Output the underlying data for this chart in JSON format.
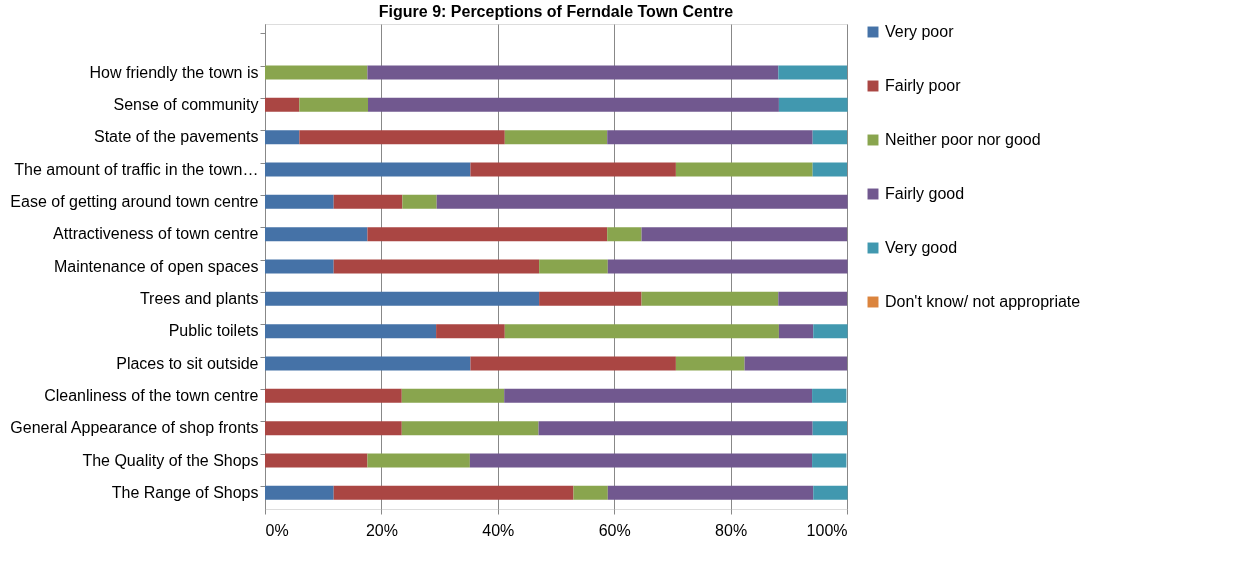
{
  "chart_data": {
    "type": "bar",
    "orientation": "horizontal",
    "stacked": true,
    "title": "Figure 9: Perceptions of Ferndale Town Centre",
    "categories": [
      null,
      "How friendly the town is",
      "Sense of community",
      "State of the pavements",
      "The amount of traffic in the town…",
      "Ease of getting around town centre",
      "Attractiveness of town centre",
      "Maintenance of open spaces",
      "Trees and plants",
      "Public toilets",
      "Places to sit outside",
      "Cleanliness of the town centre",
      "General Appearance of shop fronts",
      "The Quality of the Shops",
      "The Range of Shops"
    ],
    "series": [
      {
        "name": "Very poor",
        "color": "#4572a7",
        "values": [
          null,
          0,
          0,
          5.9,
          35.3,
          11.8,
          17.6,
          11.8,
          47.1,
          29.4,
          35.3,
          0,
          0,
          0,
          11.8
        ]
      },
      {
        "name": "Fairly poor",
        "color": "#aa4643",
        "values": [
          null,
          0,
          5.9,
          35.3,
          35.3,
          11.8,
          41.2,
          35.3,
          17.6,
          11.8,
          35.3,
          23.5,
          23.5,
          17.6,
          41.2
        ]
      },
      {
        "name": "Neither poor nor good",
        "color": "#89a54e",
        "values": [
          null,
          17.6,
          11.8,
          17.6,
          23.5,
          5.9,
          5.9,
          11.8,
          23.5,
          47.1,
          11.8,
          17.6,
          23.5,
          17.6,
          5.9
        ]
      },
      {
        "name": "Fairly good",
        "color": "#71588f",
        "values": [
          null,
          70.6,
          70.6,
          35.3,
          0,
          70.6,
          35.3,
          41.2,
          11.8,
          5.9,
          17.6,
          52.9,
          47.1,
          58.8,
          35.3
        ]
      },
      {
        "name": "Very good",
        "color": "#4198af",
        "values": [
          null,
          11.8,
          11.8,
          5.9,
          5.9,
          0,
          0,
          0,
          0,
          5.9,
          0,
          5.9,
          5.9,
          5.9,
          5.9
        ]
      },
      {
        "name": "Don't know/ not appropriate",
        "color": "#db843d",
        "values": [
          null,
          0,
          0,
          0,
          0,
          0,
          0,
          0,
          0,
          0,
          0,
          0,
          0,
          0,
          0
        ]
      }
    ],
    "xlim": [
      0,
      100
    ],
    "xticks": [
      {
        "value": 0,
        "label": "0%"
      },
      {
        "value": 20,
        "label": "20%"
      },
      {
        "value": 40,
        "label": "40%"
      },
      {
        "value": 60,
        "label": "60%"
      },
      {
        "value": 80,
        "label": "80%"
      },
      {
        "value": 100,
        "label": "100%"
      }
    ],
    "grid": "x",
    "legend": "right"
  }
}
